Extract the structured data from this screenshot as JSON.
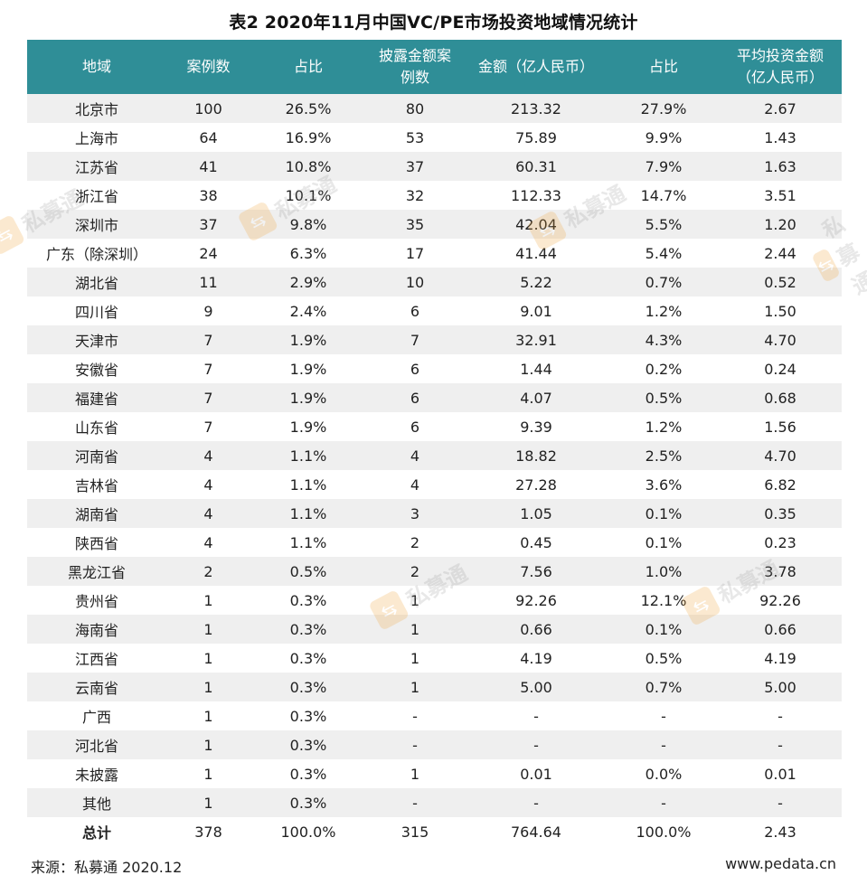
{
  "title": "表2  2020年11月中国VC/PE市场投资地域情况统计",
  "headers": [
    "地域",
    "案例数",
    "占比",
    "披露金额案例数",
    "金额（亿人民币）",
    "占比",
    "平均投资金额（亿人民币）"
  ],
  "header_lines": [
    [
      "地域"
    ],
    [
      "案例数"
    ],
    [
      "占比"
    ],
    [
      "披露金额案",
      "例数"
    ],
    [
      "金额（亿人民币）"
    ],
    [
      "占比"
    ],
    [
      "平均投资金额",
      "（亿人民币）"
    ]
  ],
  "rows": [
    [
      "北京市",
      "100",
      "26.5%",
      "80",
      "213.32",
      "27.9%",
      "2.67"
    ],
    [
      "上海市",
      "64",
      "16.9%",
      "53",
      "75.89",
      "9.9%",
      "1.43"
    ],
    [
      "江苏省",
      "41",
      "10.8%",
      "37",
      "60.31",
      "7.9%",
      "1.63"
    ],
    [
      "浙江省",
      "38",
      "10.1%",
      "32",
      "112.33",
      "14.7%",
      "3.51"
    ],
    [
      "深圳市",
      "37",
      "9.8%",
      "35",
      "42.04",
      "5.5%",
      "1.20"
    ],
    [
      "广东（除深圳）",
      "24",
      "6.3%",
      "17",
      "41.44",
      "5.4%",
      "2.44"
    ],
    [
      "湖北省",
      "11",
      "2.9%",
      "10",
      "5.22",
      "0.7%",
      "0.52"
    ],
    [
      "四川省",
      "9",
      "2.4%",
      "6",
      "9.01",
      "1.2%",
      "1.50"
    ],
    [
      "天津市",
      "7",
      "1.9%",
      "7",
      "32.91",
      "4.3%",
      "4.70"
    ],
    [
      "安徽省",
      "7",
      "1.9%",
      "6",
      "1.44",
      "0.2%",
      "0.24"
    ],
    [
      "福建省",
      "7",
      "1.9%",
      "6",
      "4.07",
      "0.5%",
      "0.68"
    ],
    [
      "山东省",
      "7",
      "1.9%",
      "6",
      "9.39",
      "1.2%",
      "1.56"
    ],
    [
      "河南省",
      "4",
      "1.1%",
      "4",
      "18.82",
      "2.5%",
      "4.70"
    ],
    [
      "吉林省",
      "4",
      "1.1%",
      "4",
      "27.28",
      "3.6%",
      "6.82"
    ],
    [
      "湖南省",
      "4",
      "1.1%",
      "3",
      "1.05",
      "0.1%",
      "0.35"
    ],
    [
      "陕西省",
      "4",
      "1.1%",
      "2",
      "0.45",
      "0.1%",
      "0.23"
    ],
    [
      "黑龙江省",
      "2",
      "0.5%",
      "2",
      "7.56",
      "1.0%",
      "3.78"
    ],
    [
      "贵州省",
      "1",
      "0.3%",
      "1",
      "92.26",
      "12.1%",
      "92.26"
    ],
    [
      "海南省",
      "1",
      "0.3%",
      "1",
      "0.66",
      "0.1%",
      "0.66"
    ],
    [
      "江西省",
      "1",
      "0.3%",
      "1",
      "4.19",
      "0.5%",
      "4.19"
    ],
    [
      "云南省",
      "1",
      "0.3%",
      "1",
      "5.00",
      "0.7%",
      "5.00"
    ],
    [
      "广西",
      "1",
      "0.3%",
      "-",
      "-",
      "-",
      "-"
    ],
    [
      "河北省",
      "1",
      "0.3%",
      "-",
      "-",
      "-",
      "-"
    ],
    [
      "未披露",
      "1",
      "0.3%",
      "1",
      "0.01",
      "0.0%",
      "0.01"
    ],
    [
      "其他",
      "1",
      "0.3%",
      "-",
      "-",
      "-",
      "-"
    ]
  ],
  "total": [
    "总计",
    "378",
    "100.0%",
    "315",
    "764.64",
    "100.0%",
    "2.43"
  ],
  "footer": {
    "source": "来源：私募通 2020.12",
    "site": "www.pedata.cn"
  },
  "watermark": {
    "text": "私募通",
    "accent": "#f0a030"
  },
  "colors": {
    "header_bg": "#2f8e97",
    "stripe": "#efefef"
  }
}
